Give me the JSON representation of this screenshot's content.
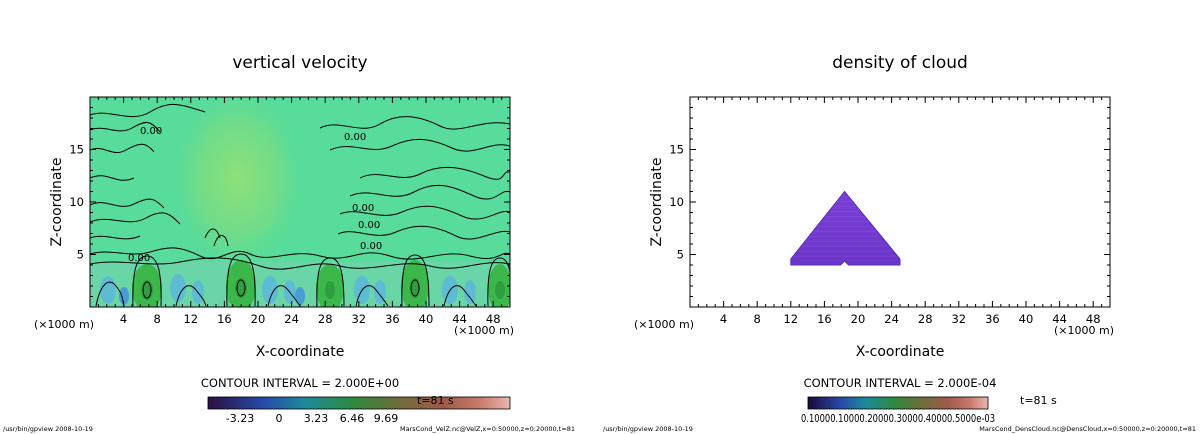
{
  "chart_data": [
    {
      "type": "heatmap",
      "title": "vertical velocity",
      "xlabel": "X-coordinate",
      "ylabel": "Z-coordinate",
      "x_unit_left": "(×1000 m)",
      "x_unit_right": "(×1000 m)",
      "xlim": [
        0,
        50
      ],
      "ylim": [
        0,
        20
      ],
      "xticks": [
        "4",
        "8",
        "12",
        "16",
        "20",
        "24",
        "28",
        "32",
        "36",
        "40",
        "44",
        "48"
      ],
      "yticks": [
        "5",
        "10",
        "15"
      ],
      "contour_labels": [
        "0.00",
        "0.00",
        "0.00",
        "0.00",
        "0.00",
        "0.00"
      ],
      "contour_interval": "CONTOUR INTERVAL = 2.000E+00",
      "time": "t=81 s",
      "colorbar_labels": [
        "-3.23",
        "0",
        "3.23",
        "6.46",
        "9.69"
      ],
      "footer_left": "/usr/bin/gpview  2008-10-19",
      "footer_right": "MarsCond_VelZ.nc@VelZ,x=0:50000,z=0:20000,t=81"
    },
    {
      "type": "heatmap",
      "title": "density of cloud",
      "xlabel": "X-coordinate",
      "ylabel": "Z-coordinate",
      "x_unit_left": "(×1000 m)",
      "x_unit_right": "(×1000 m)",
      "xlim": [
        0,
        50
      ],
      "ylim": [
        0,
        20
      ],
      "xticks": [
        "4",
        "8",
        "12",
        "16",
        "20",
        "24",
        "28",
        "32",
        "36",
        "40",
        "44",
        "48"
      ],
      "yticks": [
        "5",
        "10",
        "15"
      ],
      "cloud_region": {
        "x": [
          12,
          18.4,
          25
        ],
        "z_base": 4,
        "z_top": 11
      },
      "contour_interval": "CONTOUR INTERVAL = 2.000E-04",
      "time": "t=81 s",
      "colorbar_labels": [
        "0.1000E-03",
        "0.2000E-03",
        "0.3000E-03",
        "0.4000E-03",
        "0.5000E-03"
      ],
      "colorbar_overlap_text": "0.10000.10000.20000.30000.40000.5000e-03",
      "footer_left": "/usr/bin/gpview  2008-10-19",
      "footer_right": "MarsCond_DensCloud.nc@DensCloud,x=0:50000,z=0:20000,t=81"
    }
  ]
}
